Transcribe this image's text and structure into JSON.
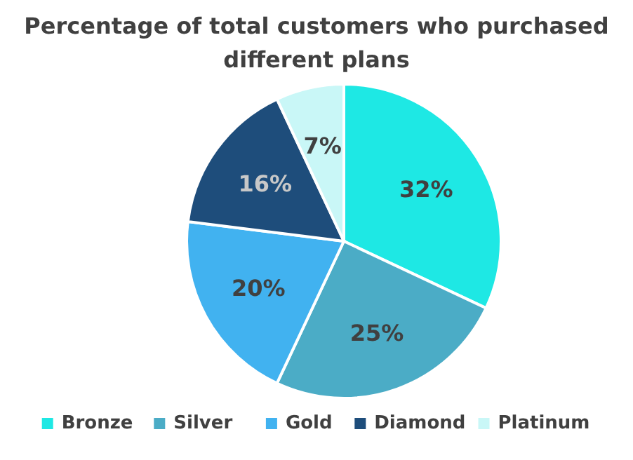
{
  "chart_data": {
    "type": "pie",
    "title": "Percentage of total customers who purchased different plans",
    "categories": [
      "Bronze",
      "Silver",
      "Gold",
      "Diamond",
      "Platinum"
    ],
    "values": [
      32,
      25,
      20,
      16,
      7
    ],
    "colors": [
      "#1ee8e4",
      "#4bacc6",
      "#41b2f0",
      "#1e4d7b",
      "#c9f7f7"
    ],
    "value_labels": [
      "32%",
      "25%",
      "20%",
      "16%",
      "7%"
    ],
    "legend": "bottom"
  }
}
